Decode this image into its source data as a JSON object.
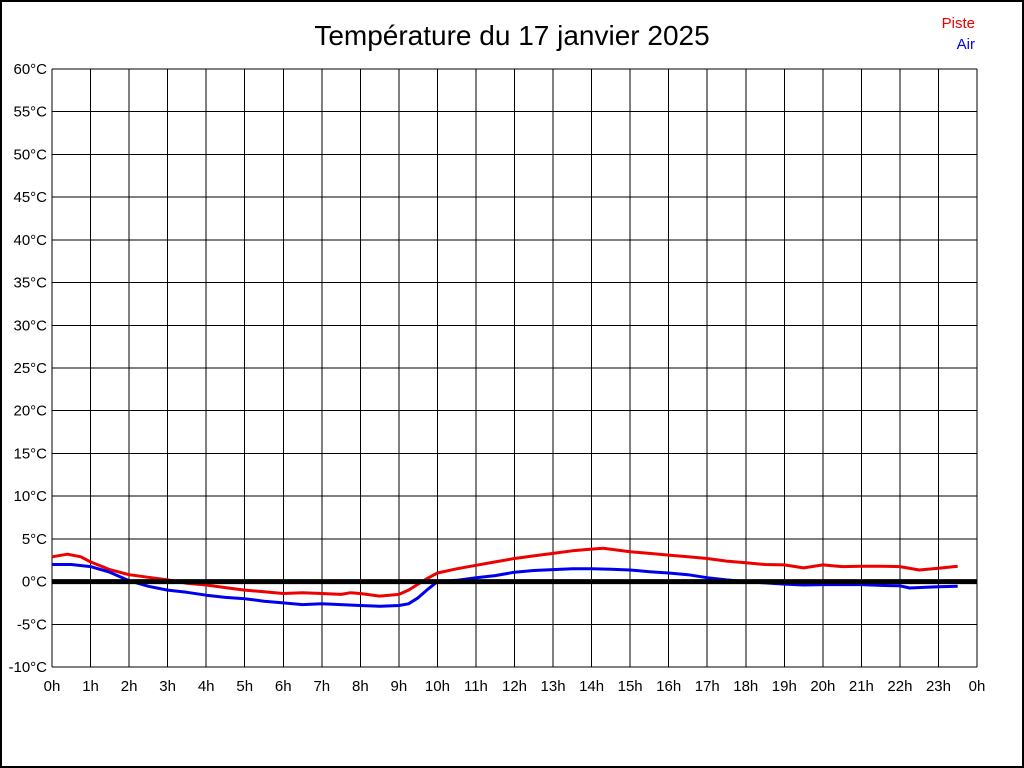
{
  "page": {
    "background_color": "#ffffff",
    "border_color": "#000000"
  },
  "chart_data": {
    "type": "line",
    "title": "Température du 17 janvier 2025",
    "xlabel": "",
    "ylabel": "",
    "xlim": [
      0,
      24
    ],
    "ylim": [
      -10,
      60
    ],
    "grid": true,
    "grid_color": "#000000",
    "zero_line": {
      "value": 0,
      "color": "#000000"
    },
    "legend_position": "top-right-outside",
    "xticks": {
      "values": [
        0,
        1,
        2,
        3,
        4,
        5,
        6,
        7,
        8,
        9,
        10,
        11,
        12,
        13,
        14,
        15,
        16,
        17,
        18,
        19,
        20,
        21,
        22,
        23,
        24
      ],
      "labels": [
        "0h",
        "1h",
        "2h",
        "3h",
        "4h",
        "5h",
        "6h",
        "7h",
        "8h",
        "9h",
        "10h",
        "11h",
        "12h",
        "13h",
        "14h",
        "15h",
        "16h",
        "17h",
        "18h",
        "19h",
        "20h",
        "21h",
        "22h",
        "23h",
        "0h"
      ]
    },
    "yticks": {
      "values": [
        60,
        55,
        50,
        45,
        40,
        35,
        30,
        25,
        20,
        15,
        10,
        5,
        0,
        -5,
        -10
      ],
      "labels": [
        "60°C",
        "55°C",
        "50°C",
        "45°C",
        "40°C",
        "35°C",
        "30°C",
        "25°C",
        "20°C",
        "15°C",
        "10°C",
        "5°C",
        "0°C",
        "-5°C",
        "-10°C"
      ]
    },
    "series": [
      {
        "name": "Piste",
        "color": "#ee0000",
        "points": [
          [
            0,
            2.9
          ],
          [
            0.4,
            3.2
          ],
          [
            0.75,
            2.9
          ],
          [
            1,
            2.3
          ],
          [
            1.5,
            1.4
          ],
          [
            2,
            0.8
          ],
          [
            2.5,
            0.5
          ],
          [
            3,
            0.2
          ],
          [
            3.5,
            -0.2
          ],
          [
            4,
            -0.4
          ],
          [
            4.5,
            -0.7
          ],
          [
            5,
            -1.0
          ],
          [
            5.5,
            -1.2
          ],
          [
            6,
            -1.4
          ],
          [
            6.5,
            -1.3
          ],
          [
            7,
            -1.4
          ],
          [
            7.5,
            -1.5
          ],
          [
            7.75,
            -1.3
          ],
          [
            8,
            -1.4
          ],
          [
            8.5,
            -1.7
          ],
          [
            9,
            -1.5
          ],
          [
            9.25,
            -1.0
          ],
          [
            9.5,
            -0.3
          ],
          [
            9.75,
            0.4
          ],
          [
            10,
            1.0
          ],
          [
            10.5,
            1.5
          ],
          [
            11,
            1.9
          ],
          [
            11.5,
            2.3
          ],
          [
            12,
            2.7
          ],
          [
            12.5,
            3.0
          ],
          [
            13,
            3.3
          ],
          [
            13.5,
            3.6
          ],
          [
            14,
            3.8
          ],
          [
            14.3,
            3.9
          ],
          [
            15,
            3.5
          ],
          [
            15.5,
            3.3
          ],
          [
            16,
            3.1
          ],
          [
            16.5,
            2.9
          ],
          [
            17,
            2.7
          ],
          [
            17.5,
            2.4
          ],
          [
            18,
            2.2
          ],
          [
            18.5,
            2.0
          ],
          [
            19,
            1.95
          ],
          [
            19.5,
            1.6
          ],
          [
            20,
            1.95
          ],
          [
            20.5,
            1.75
          ],
          [
            21,
            1.8
          ],
          [
            21.5,
            1.8
          ],
          [
            22,
            1.75
          ],
          [
            22.5,
            1.35
          ],
          [
            23,
            1.55
          ],
          [
            23.5,
            1.8
          ]
        ]
      },
      {
        "name": "Air",
        "color": "#0000ee",
        "points": [
          [
            0,
            2.0
          ],
          [
            0.5,
            2.0
          ],
          [
            1,
            1.75
          ],
          [
            1.5,
            1.1
          ],
          [
            2,
            0.1
          ],
          [
            2.5,
            -0.55
          ],
          [
            3,
            -1.0
          ],
          [
            3.5,
            -1.25
          ],
          [
            4,
            -1.6
          ],
          [
            4.5,
            -1.85
          ],
          [
            5,
            -2.0
          ],
          [
            5.5,
            -2.3
          ],
          [
            6,
            -2.5
          ],
          [
            6.5,
            -2.7
          ],
          [
            7,
            -2.6
          ],
          [
            7.5,
            -2.7
          ],
          [
            8,
            -2.8
          ],
          [
            8.5,
            -2.9
          ],
          [
            9,
            -2.8
          ],
          [
            9.25,
            -2.6
          ],
          [
            9.5,
            -1.9
          ],
          [
            9.75,
            -0.9
          ],
          [
            10,
            0.0
          ],
          [
            10.5,
            0.15
          ],
          [
            11,
            0.45
          ],
          [
            11.5,
            0.7
          ],
          [
            12,
            1.1
          ],
          [
            12.5,
            1.3
          ],
          [
            13,
            1.4
          ],
          [
            13.5,
            1.5
          ],
          [
            14,
            1.5
          ],
          [
            14.5,
            1.45
          ],
          [
            15,
            1.35
          ],
          [
            15.5,
            1.15
          ],
          [
            16,
            1.0
          ],
          [
            16.5,
            0.8
          ],
          [
            17,
            0.45
          ],
          [
            17.5,
            0.2
          ],
          [
            18,
            0.0
          ],
          [
            18.5,
            -0.15
          ],
          [
            19,
            -0.3
          ],
          [
            19.5,
            -0.4
          ],
          [
            20,
            -0.35
          ],
          [
            20.5,
            -0.35
          ],
          [
            21,
            -0.35
          ],
          [
            21.5,
            -0.45
          ],
          [
            22,
            -0.5
          ],
          [
            22.25,
            -0.75
          ],
          [
            22.75,
            -0.65
          ],
          [
            23,
            -0.6
          ],
          [
            23.5,
            -0.55
          ]
        ]
      }
    ]
  }
}
